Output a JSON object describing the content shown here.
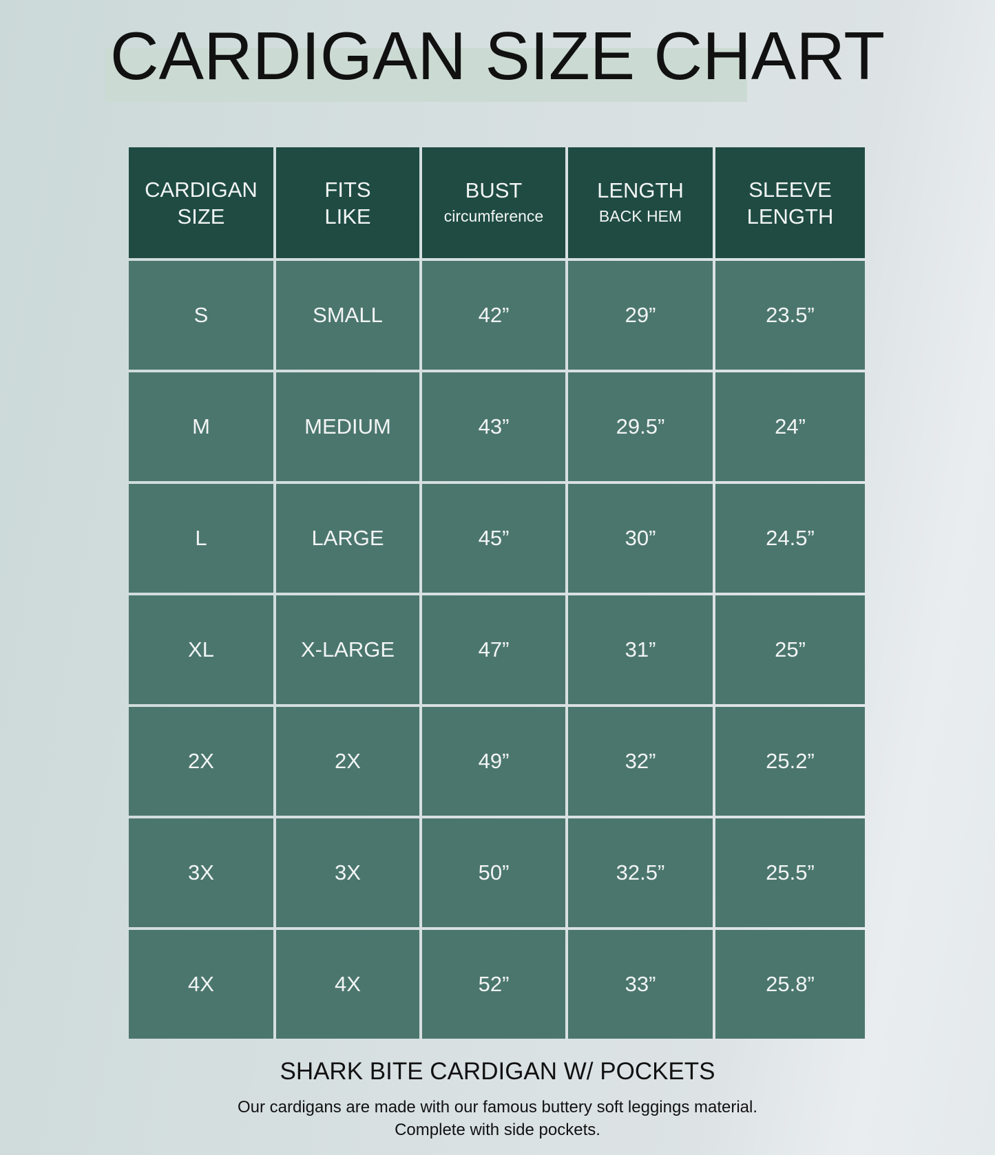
{
  "title": "CARDIGAN SIZE CHART",
  "colors": {
    "header_bg": "#1f4b43",
    "row_bg": "#4b766e",
    "highlight": "#cbdad2"
  },
  "table": {
    "headers": [
      {
        "main": "CARDIGAN",
        "main2": "SIZE",
        "sub": ""
      },
      {
        "main": "FITS",
        "main2": "LIKE",
        "sub": ""
      },
      {
        "main": "BUST",
        "main2": "",
        "sub": "circumference"
      },
      {
        "main": "LENGTH",
        "main2": "",
        "sub": "BACK HEM"
      },
      {
        "main": "SLEEVE",
        "main2": "LENGTH",
        "sub": ""
      }
    ],
    "rows": [
      [
        "S",
        "SMALL",
        "42”",
        "29”",
        "23.5”"
      ],
      [
        "M",
        "MEDIUM",
        "43”",
        "29.5”",
        "24”"
      ],
      [
        "L",
        "LARGE",
        "45”",
        "30”",
        "24.5”"
      ],
      [
        "XL",
        "X-LARGE",
        "47”",
        "31”",
        "25”"
      ],
      [
        "2X",
        "2X",
        "49”",
        "32”",
        "25.2”"
      ],
      [
        "3X",
        "3X",
        "50”",
        "32.5”",
        "25.5”"
      ],
      [
        "4X",
        "4X",
        "52”",
        "33”",
        "25.8”"
      ]
    ]
  },
  "footer": {
    "product": "SHARK BITE CARDIGAN W/ POCKETS",
    "line1": "Our cardigans are made with our famous buttery soft leggings material.",
    "line2": "Complete with side pockets."
  }
}
